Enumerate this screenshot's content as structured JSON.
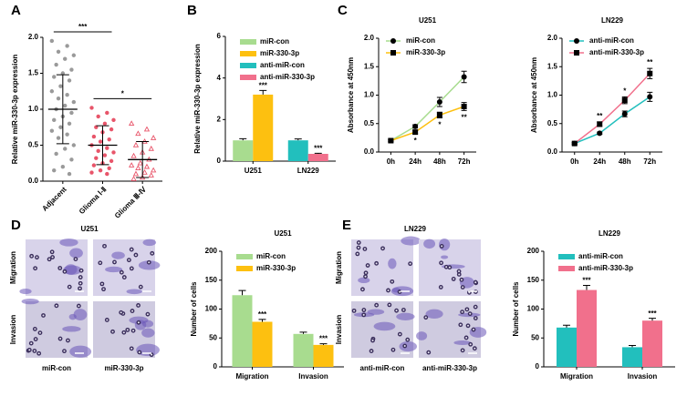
{
  "panel_labels": [
    "A",
    "B",
    "C",
    "D",
    "E"
  ],
  "images": [
    {
      "title": "U251",
      "rows": [
        "Migration",
        "Invasion"
      ],
      "columns": [
        "miR-con",
        "miR-330-3p"
      ]
    },
    {
      "title": "LN229",
      "rows": [
        "Migration",
        "Invasion"
      ],
      "columns": [
        "anti-miR-con",
        "anti-miR-330-3p"
      ]
    }
  ],
  "chart_data": [
    {
      "type": "dot",
      "y_label": "Relative miR-330-3p expression",
      "categories": [
        "Adjacent",
        "Glioma Ⅰ-Ⅱ",
        "Glioma Ⅲ-Ⅳ"
      ],
      "groups": [
        {
          "color": "#9a9a9a",
          "marker": "circle",
          "mean": 1.0,
          "sd": 0.48,
          "values": [
            1.95,
            1.88,
            1.8,
            1.75,
            1.7,
            1.62,
            1.55,
            1.5,
            1.45,
            1.4,
            1.32,
            1.25,
            1.2,
            1.15,
            1.1,
            1.05,
            1.0,
            0.95,
            0.9,
            0.85,
            0.8,
            0.75,
            0.7,
            0.65,
            0.6,
            0.5,
            0.45,
            0.38,
            0.3,
            0.2,
            0.15,
            0.1
          ]
        },
        {
          "color": "#e8556a",
          "marker": "circle",
          "mean": 0.5,
          "sd": 0.27,
          "values": [
            1.02,
            0.95,
            0.9,
            0.85,
            0.8,
            0.75,
            0.72,
            0.68,
            0.62,
            0.58,
            0.55,
            0.5,
            0.46,
            0.42,
            0.4,
            0.36,
            0.32,
            0.28,
            0.25,
            0.22,
            0.18,
            0.15,
            0.12,
            0.1
          ]
        },
        {
          "color": "#e8556a",
          "marker": "triangle",
          "mean": 0.3,
          "sd": 0.25,
          "values": [
            0.8,
            0.72,
            0.66,
            0.6,
            0.55,
            0.5,
            0.45,
            0.4,
            0.35,
            0.3,
            0.25,
            0.22,
            0.2,
            0.18,
            0.15,
            0.12,
            0.1,
            0.08,
            0.05,
            0.03
          ]
        }
      ],
      "annotations": [
        {
          "text": "***",
          "from": 0,
          "to": 1
        },
        {
          "text": "*",
          "from": 1,
          "to": 2
        }
      ],
      "ylim": [
        0,
        2
      ],
      "yticks": [
        {
          "value": 0,
          "label": "0.0"
        },
        0.5,
        {
          "value": 1,
          "label": "1.0"
        },
        1.5,
        {
          "value": 2,
          "label": "2.0"
        }
      ]
    },
    {
      "type": "bar",
      "y_label": "Relative miR-330-3p expression",
      "categories": [
        "U251",
        "LN229"
      ],
      "series": [
        {
          "name": "miR-con",
          "color": "#a8dc8f",
          "values": [
            1.0,
            null
          ],
          "errors": [
            0.08,
            null
          ],
          "significance": [
            null,
            null
          ]
        },
        {
          "name": "miR-330-3p",
          "color": "#fdc010",
          "values": [
            3.2,
            null
          ],
          "errors": [
            0.2,
            null
          ],
          "significance": [
            "***",
            null
          ]
        },
        {
          "name": "anti-miR-con",
          "color": "#22bfbd",
          "values": [
            null,
            1.0
          ],
          "errors": [
            null,
            0.07
          ],
          "significance": [
            null,
            null
          ]
        },
        {
          "name": "anti-miR-330-3p",
          "color": "#f1708c",
          "values": [
            null,
            0.35
          ],
          "errors": [
            null,
            0.03
          ],
          "significance": [
            null,
            "***"
          ]
        }
      ],
      "ylim": [
        0,
        6
      ],
      "yticks": [
        0,
        2,
        4,
        6
      ]
    },
    {
      "type": "line",
      "title": "U251",
      "y_label": "Absorbance at 450nm",
      "categories": [
        "0h",
        "24h",
        "48h",
        "72h"
      ],
      "significance_side": "below",
      "series": [
        {
          "name": "miR-con",
          "color": "#a8dc8f",
          "marker": "circle",
          "values": [
            0.2,
            0.45,
            0.88,
            1.32
          ],
          "errors": [
            0.02,
            0.03,
            0.08,
            0.1
          ],
          "significance": [
            null,
            null,
            null,
            null
          ]
        },
        {
          "name": "miR-330-3p",
          "color": "#fdc010",
          "marker": "square",
          "values": [
            0.2,
            0.35,
            0.65,
            0.8
          ],
          "errors": [
            0.02,
            0.03,
            0.05,
            0.07
          ],
          "significance": [
            null,
            "*",
            "*",
            "**"
          ]
        }
      ],
      "ylim": [
        0,
        2
      ],
      "yticks": [
        {
          "value": 0,
          "label": "0.0"
        },
        0.5,
        {
          "value": 1,
          "label": "1.0"
        },
        1.5,
        {
          "value": 2,
          "label": "2.0"
        }
      ]
    },
    {
      "type": "line",
      "title": "LN229",
      "y_label": "Absorbance at 450nm",
      "categories": [
        "0h",
        "24h",
        "48h",
        "72h"
      ],
      "significance_side": "above",
      "series": [
        {
          "name": "anti-miR-con",
          "color": "#22bfbd",
          "marker": "circle",
          "values": [
            0.15,
            0.33,
            0.67,
            0.97
          ],
          "errors": [
            0.02,
            0.02,
            0.05,
            0.08
          ],
          "significance": [
            null,
            null,
            null,
            null
          ]
        },
        {
          "name": "anti-miR-330-3p",
          "color": "#f1708c",
          "marker": "square",
          "values": [
            0.15,
            0.49,
            0.91,
            1.38
          ],
          "errors": [
            0.02,
            0.04,
            0.06,
            0.09
          ],
          "significance": [
            null,
            "**",
            "*",
            "**"
          ]
        }
      ],
      "ylim": [
        0,
        2
      ],
      "yticks": [
        {
          "value": 0,
          "label": "0.0"
        },
        0.5,
        {
          "value": 1,
          "label": "1.0"
        },
        1.5,
        {
          "value": 2,
          "label": "2.0"
        }
      ]
    },
    {
      "type": "bar",
      "title": "U251",
      "y_label": "Number of cells",
      "categories": [
        "Migration",
        "Invasion"
      ],
      "series": [
        {
          "name": "miR-con",
          "color": "#a8dc8f",
          "values": [
            124,
            57
          ],
          "errors": [
            8,
            3
          ],
          "significance": [
            null,
            null
          ]
        },
        {
          "name": "miR-330-3p",
          "color": "#fdc010",
          "values": [
            78,
            38
          ],
          "errors": [
            4,
            2
          ],
          "significance": [
            "***",
            "***"
          ]
        }
      ],
      "ylim": [
        0,
        200
      ],
      "yticks": [
        0,
        50,
        100,
        150,
        200
      ]
    },
    {
      "type": "bar",
      "title": "LN229",
      "y_label": "Number of cells",
      "categories": [
        "Migration",
        "Invasion"
      ],
      "series": [
        {
          "name": "anti-miR-con",
          "color": "#22bfbd",
          "values": [
            68,
            34
          ],
          "errors": [
            4,
            3
          ],
          "significance": [
            null,
            null
          ]
        },
        {
          "name": "anti-miR-330-3p",
          "color": "#f1708c",
          "values": [
            133,
            80
          ],
          "errors": [
            8,
            4
          ],
          "significance": [
            "***",
            "***"
          ]
        }
      ],
      "ylim": [
        0,
        200
      ],
      "yticks": [
        0,
        50,
        100,
        150,
        200
      ]
    }
  ]
}
